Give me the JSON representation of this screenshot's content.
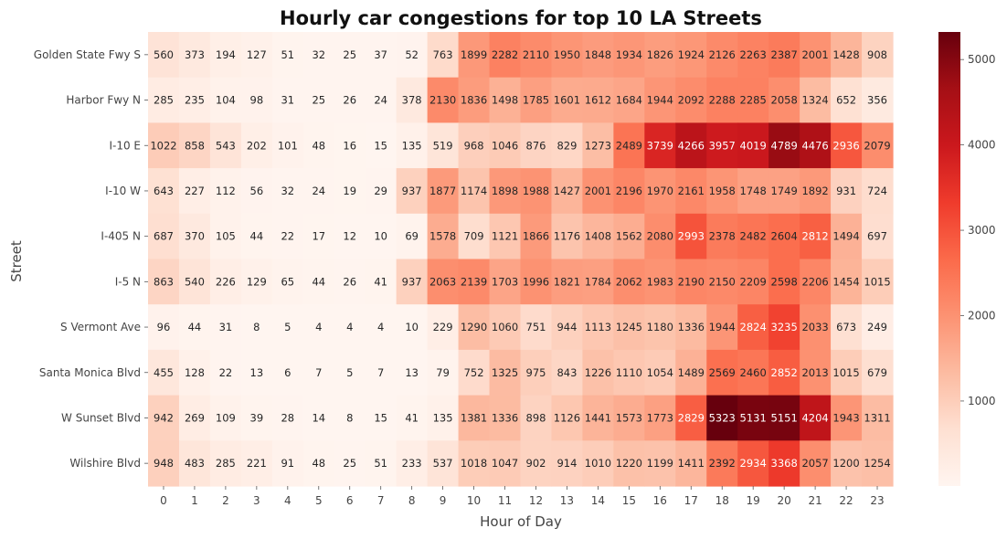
{
  "chart_data": {
    "type": "heatmap",
    "title": "Hourly car congestions for top 10 LA Streets",
    "xlabel": "Hour of Day",
    "ylabel": "Street",
    "x": [
      "0",
      "1",
      "2",
      "3",
      "4",
      "5",
      "6",
      "7",
      "8",
      "9",
      "10",
      "11",
      "12",
      "13",
      "14",
      "15",
      "16",
      "17",
      "18",
      "19",
      "20",
      "21",
      "22",
      "23"
    ],
    "y": [
      "Golden State Fwy S",
      "Harbor Fwy N",
      "I-10 E",
      "I-10 W",
      "I-405 N",
      "I-5 N",
      "S Vermont Ave",
      "Santa Monica Blvd",
      "W Sunset Blvd",
      "Wilshire Blvd"
    ],
    "values": [
      [
        560,
        373,
        194,
        127,
        51,
        32,
        25,
        37,
        52,
        763,
        1899,
        2282,
        2110,
        1950,
        1848,
        1934,
        1826,
        1924,
        2126,
        2263,
        2387,
        2001,
        1428,
        908
      ],
      [
        285,
        235,
        104,
        98,
        31,
        25,
        26,
        24,
        378,
        2130,
        1836,
        1498,
        1785,
        1601,
        1612,
        1684,
        1944,
        2092,
        2288,
        2285,
        2058,
        1324,
        652,
        356
      ],
      [
        1022,
        858,
        543,
        202,
        101,
        48,
        16,
        15,
        135,
        519,
        968,
        1046,
        876,
        829,
        1273,
        2489,
        3739,
        4266,
        3957,
        4019,
        4789,
        4476,
        2936,
        2079
      ],
      [
        643,
        227,
        112,
        56,
        32,
        24,
        19,
        29,
        937,
        1877,
        1174,
        1898,
        1988,
        1427,
        2001,
        2196,
        1970,
        2161,
        1958,
        1748,
        1749,
        1892,
        931,
        724
      ],
      [
        687,
        370,
        105,
        44,
        22,
        17,
        12,
        10,
        69,
        1578,
        709,
        1121,
        1866,
        1176,
        1408,
        1562,
        2080,
        2993,
        2378,
        2482,
        2604,
        2812,
        1494,
        697
      ],
      [
        863,
        540,
        226,
        129,
        65,
        44,
        26,
        41,
        937,
        2063,
        2139,
        1703,
        1996,
        1821,
        1784,
        2062,
        1983,
        2190,
        2150,
        2209,
        2598,
        2206,
        1454,
        1015
      ],
      [
        96,
        44,
        31,
        8,
        5,
        4,
        4,
        4,
        10,
        229,
        1290,
        1060,
        751,
        944,
        1113,
        1245,
        1180,
        1336,
        1944,
        2824,
        3235,
        2033,
        673,
        249
      ],
      [
        455,
        128,
        22,
        13,
        6,
        7,
        5,
        7,
        13,
        79,
        752,
        1325,
        975,
        843,
        1226,
        1110,
        1054,
        1489,
        2569,
        2460,
        2852,
        2013,
        1015,
        679
      ],
      [
        942,
        269,
        109,
        39,
        28,
        14,
        8,
        15,
        41,
        135,
        1381,
        1336,
        898,
        1126,
        1441,
        1573,
        1773,
        2829,
        5323,
        5131,
        5151,
        4204,
        1943,
        1311
      ],
      [
        948,
        483,
        285,
        221,
        91,
        48,
        25,
        51,
        233,
        537,
        1018,
        1047,
        902,
        914,
        1010,
        1220,
        1199,
        1411,
        2392,
        2934,
        3368,
        2057,
        1200,
        1254
      ]
    ],
    "colormap": "Reds",
    "vmin": 4,
    "vmax": 5323,
    "colorbar_ticks": [
      1000,
      2000,
      3000,
      4000,
      5000
    ],
    "annotations": true,
    "grid": false
  }
}
